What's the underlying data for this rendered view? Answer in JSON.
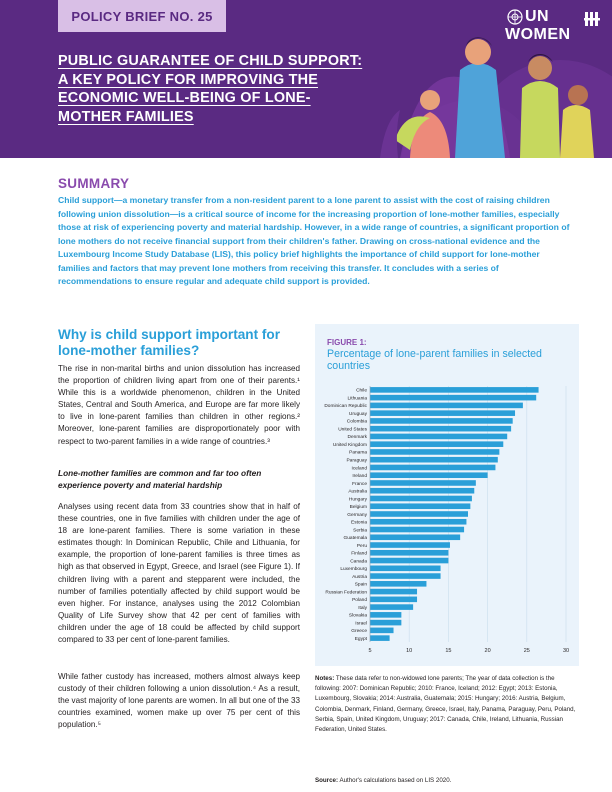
{
  "header": {
    "brief_label": "POLICY BRIEF NO. 25",
    "title_lines": [
      "PUBLIC GUARANTEE OF CHILD SUPPORT:",
      "A KEY POLICY FOR IMPROVING THE",
      "ECONOMIC WELL-BEING OF LONE-",
      "MOTHER FAMILIES"
    ],
    "logo_top": "UN",
    "logo_bottom": "WOMEN"
  },
  "summary": {
    "heading": "SUMMARY",
    "text": "Child support—a monetary transfer from a non-resident parent to a lone parent to assist with the cost of raising children following union dissolution—is a critical source of income for the increasing proportion of lone-mother families, especially those at risk of experiencing poverty and material hardship. However, in a wide range of countries, a significant proportion of lone mothers do not receive financial support from their children's father. Drawing on cross-national evidence and the Luxembourg Income Study Database (LIS), this policy brief highlights the importance of child support for lone-mother families and factors that may prevent lone mothers from receiving this transfer. It concludes with a series of recommendations to ensure regular and adequate child support is provided."
  },
  "section": {
    "heading": "Why is child support important for lone-mother families?",
    "para1": "The rise in non-marital births and union dissolution has increased the proportion of children living apart from one of their parents.¹ While this is a worldwide phenomenon, children in the United States, Central and South America, and Europe are far more likely to live in lone-parent families than children in other regions.² Moreover, lone-parent families are disproportionately poor with respect to two-parent families in a wide range of countries.³",
    "subheading": "Lone-mother families are common and far too often experience poverty and material hardship",
    "para2": "Analyses using recent data from 33 countries show that in half of these countries, one in five families with children under the age of 18 are lone-parent families. There is some variation in these estimates though: In Dominican Republic, Chile and Lithuania, for example, the proportion of lone-parent families is three times as high as that observed in Egypt, Greece, and Israel (see Figure 1). If children living with a parent and stepparent were included, the number of families potentially affected by child support would be even higher. For instance, analyses using the 2012 Colombian Quality of Life Survey show that 42 per cent of families with children under the age of 18 could be affected by child support compared to 33 per cent of lone-parent families.",
    "para3": "While father custody has increased, mothers almost always keep custody of their children following a union dissolution.⁴ As a result, the vast majority of lone parents are women. In all but one of the 33 countries examined, women make up over 75 per cent of this population.⁵"
  },
  "figure": {
    "label": "FIGURE 1:",
    "title": "Percentage of lone-parent families in selected countries",
    "notes_label": "Notes:",
    "notes": "These data refer to non-widowed lone parents; The year of data collection is the following: 2007: Dominican Republic; 2010: France, Iceland; 2012: Egypt; 2013: Estonia, Luxembourg, Slovakia; 2014: Australia, Guatemala; 2015: Hungary; 2016: Austria, Belgium, Colombia, Denmark, Finland, Germany, Greece, Israel, Italy, Panama, Paraguay, Peru, Poland, Serbia, Spain, United Kingdom, Uruguay; 2017: Canada, Chile, Ireland, Lithuania, Russian Federation, United States.",
    "source_label": "Source:",
    "source": "Author's calculations based on LIS 2020."
  },
  "chart_data": {
    "type": "bar",
    "orientation": "horizontal",
    "categories": [
      "Chile",
      "Lithuania",
      "Dominican Republic",
      "Uruguay",
      "Colombia",
      "United States",
      "Denmark",
      "United Kingdom",
      "Panama",
      "Paraguay",
      "Iceland",
      "Ireland",
      "France",
      "Australia",
      "Hungary",
      "Belgium",
      "Germany",
      "Estonia",
      "Serbia",
      "Guatemala",
      "Peru",
      "Finland",
      "Canada",
      "Luxembourg",
      "Austria",
      "Spain",
      "Russian Federation",
      "Poland",
      "Italy",
      "Slovakia",
      "Israel",
      "Greece",
      "Egypt"
    ],
    "values": [
      26.5,
      26.2,
      24.5,
      23.5,
      23.2,
      23.0,
      22.5,
      22.0,
      21.5,
      21.3,
      21.0,
      20.0,
      18.5,
      18.3,
      18.0,
      17.8,
      17.5,
      17.3,
      17.0,
      16.5,
      15.2,
      15.0,
      15.0,
      14.0,
      14.0,
      12.2,
      11.0,
      11.0,
      10.5,
      9.0,
      9.0,
      8.0,
      7.5
    ],
    "xticks": [
      5,
      10,
      15,
      20,
      25,
      30
    ],
    "xlim": [
      5,
      30
    ],
    "color": "#2a9fd8",
    "title": "Percentage of lone-parent families in selected countries",
    "xlabel": "",
    "ylabel": ""
  }
}
